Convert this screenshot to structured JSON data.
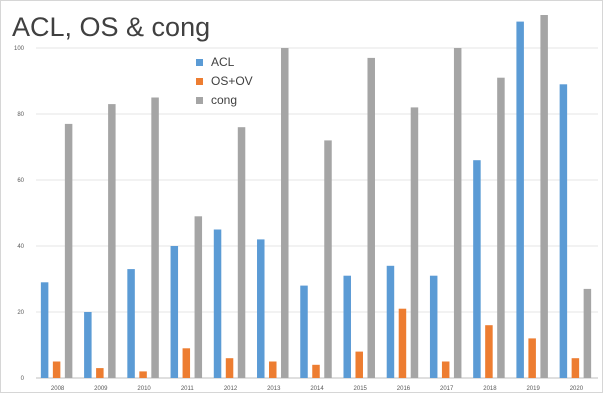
{
  "chart_data": {
    "type": "bar",
    "title": "ACL, OS & cong",
    "categories": [
      "2008",
      "2009",
      "2010",
      "2011",
      "2012",
      "2013",
      "2014",
      "2015",
      "2016",
      "2017",
      "2018",
      "2019",
      "2020"
    ],
    "series": [
      {
        "name": "ACL",
        "color": "#5b9bd5",
        "values": [
          29,
          20,
          33,
          40,
          45,
          42,
          28,
          31,
          34,
          31,
          66,
          108,
          89
        ]
      },
      {
        "name": "OS+OV",
        "color": "#ed7d31",
        "values": [
          5,
          3,
          2,
          9,
          6,
          5,
          4,
          8,
          21,
          5,
          16,
          12,
          6
        ]
      },
      {
        "name": "cong",
        "color": "#a5a5a5",
        "values": [
          77,
          83,
          85,
          49,
          76,
          100,
          72,
          97,
          82,
          100,
          91,
          110,
          27
        ]
      }
    ],
    "yticks": [
      0,
      20,
      40,
      60,
      80,
      100
    ],
    "ylim": [
      0,
      100
    ],
    "grid": true,
    "legend_position": "top-left",
    "xlabel": "",
    "ylabel": ""
  }
}
